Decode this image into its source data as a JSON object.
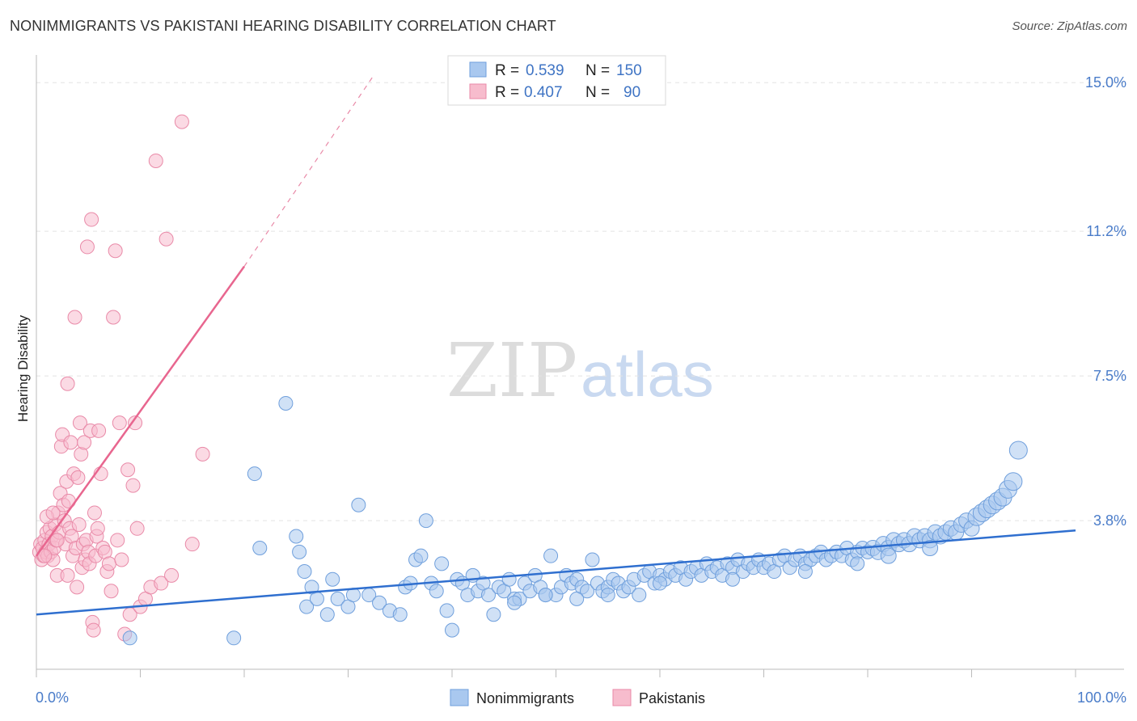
{
  "title": "NONIMMIGRANTS VS PAKISTANI HEARING DISABILITY CORRELATION CHART",
  "source": "Source: ZipAtlas.com",
  "watermark": {
    "zip": "ZIP",
    "atlas": "atlas"
  },
  "colors": {
    "blue_fill": "#a9c8ef",
    "blue_stroke": "#6f9fdc",
    "blue_line": "#2f6fcf",
    "pink_fill": "#f7bccd",
    "pink_stroke": "#e98aa8",
    "pink_line": "#e8668f",
    "grid": "#e4e4e4",
    "tick_text": "#4a7cc9"
  },
  "legend": {
    "rows": [
      {
        "r_label": "R = ",
        "r_value": "0.539",
        "n_label": "N = ",
        "n_value": "150"
      },
      {
        "r_label": "R = ",
        "r_value": "0.407",
        "n_label": "N = ",
        "n_value": "90"
      }
    ]
  },
  "bottom_legend": [
    "Nonimmigrants",
    "Pakistanis"
  ],
  "chart_data": {
    "type": "scatter",
    "xlabel": "",
    "ylabel": "Hearing Disability",
    "xlim": [
      0,
      100
    ],
    "ylim": [
      0,
      15.5
    ],
    "x_tick_labels": [
      "0.0%",
      "100.0%"
    ],
    "y_ticks": [
      3.8,
      7.5,
      11.2,
      15.0
    ],
    "y_tick_labels": [
      "3.8%",
      "7.5%",
      "11.2%",
      "15.0%"
    ],
    "grid": true,
    "legend_position": "top-center",
    "series": [
      {
        "name": "Nonimmigrants",
        "R": 0.539,
        "N": 150,
        "trend": {
          "x0": 0,
          "y0": 1.4,
          "x1": 100,
          "y1": 3.55
        },
        "points": [
          [
            9,
            0.8
          ],
          [
            19,
            0.8
          ],
          [
            21,
            5.0
          ],
          [
            21.5,
            3.1
          ],
          [
            24,
            6.8
          ],
          [
            25,
            3.4
          ],
          [
            25.3,
            3.0
          ],
          [
            25.8,
            2.5
          ],
          [
            26,
            1.6
          ],
          [
            26.5,
            2.1
          ],
          [
            27,
            1.8
          ],
          [
            28,
            1.4
          ],
          [
            28.5,
            2.3
          ],
          [
            29,
            1.8
          ],
          [
            30,
            1.6
          ],
          [
            30.5,
            1.9
          ],
          [
            31,
            4.2
          ],
          [
            32,
            1.9
          ],
          [
            33,
            1.7
          ],
          [
            34,
            1.5
          ],
          [
            35,
            1.4
          ],
          [
            35.5,
            2.1
          ],
          [
            36,
            2.2
          ],
          [
            36.5,
            2.8
          ],
          [
            37,
            2.9
          ],
          [
            37.5,
            3.8
          ],
          [
            38,
            2.2
          ],
          [
            38.5,
            2.0
          ],
          [
            39,
            2.7
          ],
          [
            39.5,
            1.5
          ],
          [
            40,
            1.0
          ],
          [
            40.5,
            2.3
          ],
          [
            41,
            2.2
          ],
          [
            41.5,
            1.9
          ],
          [
            42,
            2.4
          ],
          [
            42.5,
            2.0
          ],
          [
            43,
            2.2
          ],
          [
            43.5,
            1.9
          ],
          [
            44,
            1.4
          ],
          [
            44.5,
            2.1
          ],
          [
            45,
            2.0
          ],
          [
            45.5,
            2.3
          ],
          [
            46,
            1.8
          ],
          [
            46.5,
            1.8
          ],
          [
            47,
            2.2
          ],
          [
            47.5,
            2.0
          ],
          [
            48,
            2.4
          ],
          [
            48.5,
            2.1
          ],
          [
            49,
            1.9
          ],
          [
            49.5,
            2.9
          ],
          [
            50,
            1.9
          ],
          [
            50.5,
            2.1
          ],
          [
            51,
            2.4
          ],
          [
            51.5,
            2.2
          ],
          [
            52,
            2.3
          ],
          [
            52.5,
            2.1
          ],
          [
            53,
            2.0
          ],
          [
            53.5,
            2.8
          ],
          [
            54,
            2.2
          ],
          [
            54.5,
            2.0
          ],
          [
            55,
            2.1
          ],
          [
            55.5,
            2.3
          ],
          [
            56,
            2.2
          ],
          [
            56.5,
            2.0
          ],
          [
            57,
            2.1
          ],
          [
            57.5,
            2.3
          ],
          [
            58,
            1.9
          ],
          [
            58.5,
            2.4
          ],
          [
            59,
            2.5
          ],
          [
            59.5,
            2.2
          ],
          [
            60,
            2.4
          ],
          [
            60.5,
            2.3
          ],
          [
            61,
            2.5
          ],
          [
            61.5,
            2.4
          ],
          [
            62,
            2.6
          ],
          [
            62.5,
            2.3
          ],
          [
            63,
            2.5
          ],
          [
            63.5,
            2.6
          ],
          [
            64,
            2.4
          ],
          [
            64.5,
            2.7
          ],
          [
            65,
            2.5
          ],
          [
            65.5,
            2.6
          ],
          [
            66,
            2.4
          ],
          [
            66.5,
            2.7
          ],
          [
            67,
            2.6
          ],
          [
            67.5,
            2.8
          ],
          [
            68,
            2.5
          ],
          [
            68.5,
            2.7
          ],
          [
            69,
            2.6
          ],
          [
            69.5,
            2.8
          ],
          [
            70,
            2.6
          ],
          [
            70.5,
            2.7
          ],
          [
            71,
            2.5
          ],
          [
            71.5,
            2.8
          ],
          [
            72,
            2.9
          ],
          [
            72.5,
            2.6
          ],
          [
            73,
            2.8
          ],
          [
            73.5,
            2.9
          ],
          [
            74,
            2.7
          ],
          [
            74.5,
            2.8
          ],
          [
            75,
            2.9
          ],
          [
            75.5,
            3.0
          ],
          [
            76,
            2.8
          ],
          [
            76.5,
            2.9
          ],
          [
            77,
            3.0
          ],
          [
            77.5,
            2.9
          ],
          [
            78,
            3.1
          ],
          [
            78.5,
            2.8
          ],
          [
            79,
            3.0
          ],
          [
            79.5,
            3.1
          ],
          [
            80,
            3.0
          ],
          [
            80.5,
            3.1
          ],
          [
            81,
            3.0
          ],
          [
            81.5,
            3.2
          ],
          [
            82,
            3.1
          ],
          [
            82.5,
            3.3
          ],
          [
            83,
            3.2
          ],
          [
            83.5,
            3.3
          ],
          [
            84,
            3.2
          ],
          [
            84.5,
            3.4
          ],
          [
            85,
            3.3
          ],
          [
            85.5,
            3.4
          ],
          [
            86,
            3.3
          ],
          [
            86.5,
            3.5
          ],
          [
            87,
            3.4
          ],
          [
            87.5,
            3.5
          ],
          [
            88,
            3.6
          ],
          [
            88.5,
            3.5
          ],
          [
            89,
            3.7
          ],
          [
            89.5,
            3.8
          ],
          [
            90,
            3.6
          ],
          [
            90.5,
            3.9
          ],
          [
            91,
            4.0
          ],
          [
            91.5,
            4.1
          ],
          [
            92,
            4.2
          ],
          [
            92.5,
            4.3
          ],
          [
            93,
            4.4
          ],
          [
            93.5,
            4.6
          ],
          [
            94,
            4.8
          ],
          [
            94.5,
            5.6
          ],
          [
            67,
            2.3
          ],
          [
            74,
            2.5
          ],
          [
            79,
            2.7
          ],
          [
            82,
            2.9
          ],
          [
            86,
            3.1
          ],
          [
            60,
            2.2
          ],
          [
            55,
            1.9
          ],
          [
            52,
            1.8
          ],
          [
            49,
            1.9
          ],
          [
            46,
            1.7
          ]
        ]
      },
      {
        "name": "Pakistanis",
        "R": 0.407,
        "N": 90,
        "trend": {
          "x0": 0,
          "y0": 2.9,
          "x1": 20,
          "y1": 10.3,
          "dash_to_x": 32.5,
          "dash_to_y": 15.2
        },
        "points": [
          [
            0.3,
            3.0
          ],
          [
            0.4,
            3.2
          ],
          [
            0.5,
            2.8
          ],
          [
            0.6,
            3.1
          ],
          [
            0.7,
            2.9
          ],
          [
            0.8,
            3.3
          ],
          [
            0.9,
            3.0
          ],
          [
            1.0,
            3.5
          ],
          [
            1.1,
            2.9
          ],
          [
            1.2,
            3.2
          ],
          [
            1.3,
            3.6
          ],
          [
            1.4,
            3.0
          ],
          [
            1.5,
            3.4
          ],
          [
            1.6,
            2.8
          ],
          [
            1.7,
            3.1
          ],
          [
            1.8,
            3.7
          ],
          [
            1.9,
            3.3
          ],
          [
            2.0,
            2.4
          ],
          [
            2.1,
            4.0
          ],
          [
            2.2,
            3.5
          ],
          [
            2.3,
            4.5
          ],
          [
            2.4,
            5.7
          ],
          [
            2.5,
            6.0
          ],
          [
            2.6,
            4.2
          ],
          [
            2.7,
            3.8
          ],
          [
            2.8,
            3.2
          ],
          [
            2.9,
            4.8
          ],
          [
            3.0,
            7.3
          ],
          [
            3.1,
            4.3
          ],
          [
            3.2,
            3.6
          ],
          [
            3.3,
            5.8
          ],
          [
            3.4,
            3.4
          ],
          [
            3.5,
            2.9
          ],
          [
            3.6,
            5.0
          ],
          [
            3.7,
            9.0
          ],
          [
            3.8,
            3.1
          ],
          [
            3.9,
            2.1
          ],
          [
            4.0,
            4.9
          ],
          [
            4.1,
            3.7
          ],
          [
            4.2,
            6.3
          ],
          [
            4.3,
            5.5
          ],
          [
            4.4,
            2.6
          ],
          [
            4.5,
            3.2
          ],
          [
            4.6,
            5.8
          ],
          [
            4.7,
            2.8
          ],
          [
            4.8,
            3.3
          ],
          [
            4.9,
            10.8
          ],
          [
            5.0,
            3.0
          ],
          [
            5.1,
            2.7
          ],
          [
            5.2,
            6.1
          ],
          [
            5.3,
            11.5
          ],
          [
            5.4,
            1.2
          ],
          [
            5.5,
            1.0
          ],
          [
            5.6,
            4.0
          ],
          [
            5.7,
            2.9
          ],
          [
            5.8,
            3.4
          ],
          [
            5.9,
            3.6
          ],
          [
            6.0,
            6.1
          ],
          [
            6.2,
            5.0
          ],
          [
            6.4,
            3.1
          ],
          [
            6.6,
            3.0
          ],
          [
            6.8,
            2.5
          ],
          [
            7.0,
            2.7
          ],
          [
            7.2,
            2.0
          ],
          [
            7.4,
            9.0
          ],
          [
            7.6,
            10.7
          ],
          [
            7.8,
            3.3
          ],
          [
            8.0,
            6.3
          ],
          [
            8.2,
            2.8
          ],
          [
            8.5,
            0.9
          ],
          [
            8.8,
            5.1
          ],
          [
            9.0,
            1.4
          ],
          [
            9.3,
            4.7
          ],
          [
            9.5,
            6.3
          ],
          [
            9.7,
            3.6
          ],
          [
            10.0,
            1.6
          ],
          [
            10.5,
            1.8
          ],
          [
            11.0,
            2.1
          ],
          [
            11.5,
            13.0
          ],
          [
            12.0,
            2.2
          ],
          [
            12.5,
            11.0
          ],
          [
            13.0,
            2.4
          ],
          [
            14.0,
            14.0
          ],
          [
            15.0,
            3.2
          ],
          [
            16.0,
            5.5
          ],
          [
            1.0,
            3.9
          ],
          [
            1.6,
            4.0
          ],
          [
            2.0,
            3.3
          ],
          [
            0.8,
            2.9
          ],
          [
            3.0,
            2.4
          ]
        ]
      }
    ]
  }
}
